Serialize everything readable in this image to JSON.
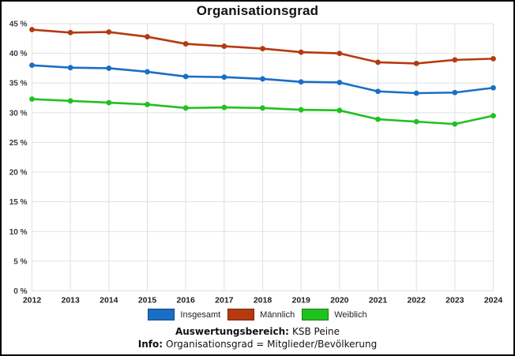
{
  "title": "Organisationsgrad",
  "chart_data": {
    "type": "line",
    "x": [
      2012,
      2013,
      2014,
      2015,
      2016,
      2017,
      2018,
      2019,
      2020,
      2021,
      2022,
      2023,
      2024
    ],
    "series": [
      {
        "name": "Insgesamt",
        "color": "#1a6fc4",
        "values": [
          38.0,
          37.6,
          37.5,
          36.9,
          36.1,
          36.0,
          35.7,
          35.2,
          35.1,
          33.6,
          33.3,
          33.4,
          34.2
        ]
      },
      {
        "name": "Männlich",
        "color": "#b53a10",
        "values": [
          44.0,
          43.5,
          43.6,
          42.8,
          41.6,
          41.2,
          40.8,
          40.2,
          40.0,
          38.5,
          38.3,
          38.9,
          39.1
        ]
      },
      {
        "name": "Weiblich",
        "color": "#1fc11f",
        "values": [
          32.3,
          32.0,
          31.7,
          31.4,
          30.8,
          30.9,
          30.8,
          30.5,
          30.4,
          28.9,
          28.5,
          28.1,
          29.5
        ]
      }
    ],
    "ylim": [
      0,
      45
    ],
    "y_tick_step": 5,
    "y_tick_suffix": " %",
    "grid": true,
    "gridline_color": "#e0e0e0",
    "legend_position": "bottom",
    "xlabel": "",
    "ylabel": ""
  },
  "footer": {
    "line1_label": "Auswertungsbereich:",
    "line1_value": "KSB Peine",
    "line2_label": "Info:",
    "line2_value": "Organisationsgrad = Mitglieder/Bevölkerung"
  }
}
